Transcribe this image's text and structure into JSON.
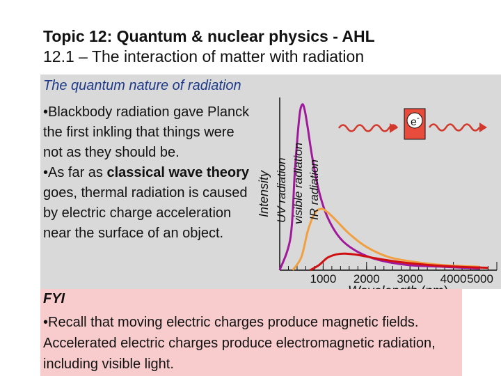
{
  "title": {
    "line1": "Topic 12: Quantum & nuclear physics - AHL",
    "line2": "12.1 – The interaction of matter with radiation"
  },
  "section": {
    "subtitle": "The quantum nature of radiation",
    "bullet1": "•Blackbody radiation gave Planck the first inkling that things were not as they should be.",
    "bullet2_pre": "•As far as ",
    "bullet2_bold": "classical wave theory",
    "bullet2_post": " goes, thermal radiation is caused by electric charge acceleration near the surface of an object."
  },
  "fyi": {
    "heading": "FYI",
    "text": "•Recall that moving electric charges produce magnetic fields. Accelerated electric charges produce electromagnetic radiation, including visible light."
  },
  "chart_data": {
    "type": "line",
    "xlabel": "Wavelength",
    "xunit": "(nm)",
    "ylabel": "Intensity",
    "xticks": [
      1000,
      2000,
      3000,
      4000,
      5000
    ],
    "xlim": [
      0,
      5000
    ],
    "ylim": [
      0,
      100
    ],
    "band_labels": [
      "UV radiation",
      "visible radiation",
      "IR radiation"
    ],
    "series": [
      {
        "color": "#a0199a",
        "x": [
          0,
          250,
          350,
          450,
          520,
          580,
          650,
          750,
          900,
          1100,
          1400,
          1800,
          2300,
          3000,
          3800,
          4600
        ],
        "values": [
          0,
          20,
          60,
          92,
          100,
          96,
          85,
          68,
          48,
          32,
          19,
          11,
          6,
          3,
          2,
          1
        ]
      },
      {
        "color": "#f0a040",
        "x": [
          300,
          500,
          650,
          800,
          950,
          1100,
          1300,
          1600,
          2000,
          2500,
          3100,
          3800,
          4600
        ],
        "values": [
          0,
          8,
          24,
          34,
          37,
          35,
          30,
          22,
          14,
          8,
          5,
          3,
          2
        ]
      },
      {
        "color": "#d01010",
        "x": [
          700,
          900,
          1100,
          1300,
          1500,
          1800,
          2200,
          2800,
          3500,
          4200,
          4800
        ],
        "values": [
          0,
          3,
          7.5,
          9.5,
          10,
          9.2,
          7.2,
          4.8,
          3,
          2,
          1.4
        ]
      }
    ]
  },
  "diagram": {
    "electron_label": "e",
    "electron_sup": "-",
    "colors": {
      "electron_box": "#e84c3d",
      "wave": "#d2382c"
    }
  }
}
